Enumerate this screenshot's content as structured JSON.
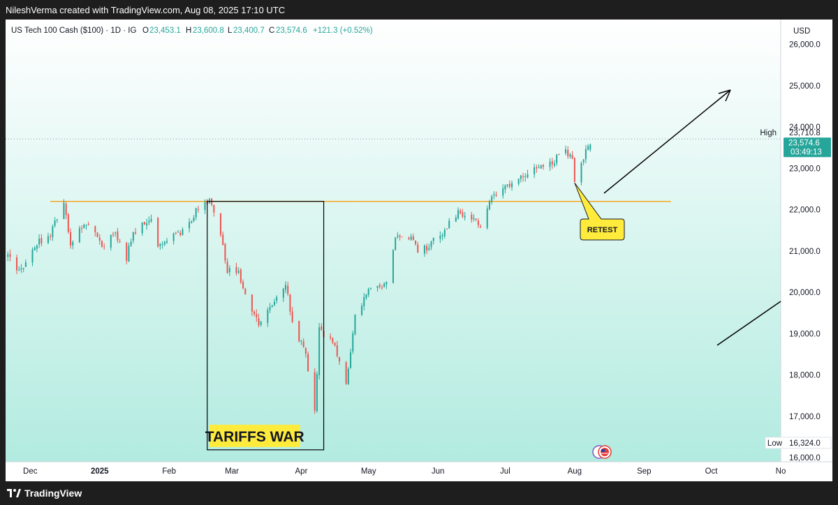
{
  "header": {
    "attribution": "NileshVerma created with TradingView.com, Aug 08, 2025 17:10 UTC"
  },
  "legend": {
    "symbol": "US Tech 100 Cash ($100) · 1D · IG",
    "o_label": "O",
    "o_value": "23,453.1",
    "h_label": "H",
    "h_value": "23,600.8",
    "l_label": "L",
    "l_value": "23,400.7",
    "c_label": "C",
    "c_value": "23,574.6",
    "change": "+121.3 (+0.52%)"
  },
  "price_axis": {
    "currency": "USD",
    "ticks": [
      "26,000.0",
      "25,000.0",
      "24,000.0",
      "23,000.0",
      "22,000.0",
      "21,000.0",
      "20,000.0",
      "19,000.0",
      "18,000.0",
      "17,000.0",
      "16,000.0"
    ],
    "high_label": "High",
    "high_value": "23,710.8",
    "last_price": "23,574.6",
    "countdown": "03:49:13",
    "low_label": "Low",
    "low_value": "16,324.0"
  },
  "time_axis": {
    "labels": [
      "Dec",
      "2025",
      "Feb",
      "Mar",
      "Apr",
      "May",
      "Jun",
      "Jul",
      "Aug",
      "Sep",
      "Oct",
      "No"
    ]
  },
  "annotations": {
    "box_label": "TARIFFS WAR",
    "callout": "RETEST"
  },
  "footer": {
    "brand": "TradingView"
  },
  "colors": {
    "up": "#26a69a",
    "down": "#ef5350",
    "resistance": "#f5a623",
    "label_bg": "#ffeb3b",
    "gradient_top": "#ffffff",
    "gradient_bottom": "#b2ebe0"
  },
  "chart_data": {
    "type": "candlestick",
    "title": "US Tech 100 Cash ($100) · 1D · IG",
    "ylabel": "USD",
    "ylim": [
      15900,
      26600
    ],
    "resistance_level": 22200,
    "high": 23710.8,
    "low": 16324.0,
    "last": 23574.6,
    "x_range": [
      "2024-11-20",
      "2025-11-01"
    ],
    "x_tick_dates": {
      "Dec": "2024-12-01",
      "2025": "2025-01-01",
      "Feb": "2025-02-01",
      "Mar": "2025-03-01",
      "Apr": "2025-04-01",
      "May": "2025-05-01",
      "Jun": "2025-06-01",
      "Jul": "2025-07-01",
      "Aug": "2025-08-01",
      "Sep": "2025-09-01",
      "Oct": "2025-10-01",
      "No": "2025-11-01"
    },
    "closes": [
      {
        "date": "2024-11-21",
        "close": 20850
      },
      {
        "date": "2024-11-27",
        "close": 20500
      },
      {
        "date": "2024-12-04",
        "close": 21200
      },
      {
        "date": "2024-12-10",
        "close": 21400
      },
      {
        "date": "2024-12-16",
        "close": 22150
      },
      {
        "date": "2024-12-19",
        "close": 21200
      },
      {
        "date": "2024-12-26",
        "close": 21700
      },
      {
        "date": "2025-01-02",
        "close": 21150
      },
      {
        "date": "2025-01-08",
        "close": 21400
      },
      {
        "date": "2025-01-13",
        "close": 20850
      },
      {
        "date": "2025-01-16",
        "close": 21450
      },
      {
        "date": "2025-01-24",
        "close": 21800
      },
      {
        "date": "2025-01-27",
        "close": 21100
      },
      {
        "date": "2025-02-03",
        "close": 21350
      },
      {
        "date": "2025-02-07",
        "close": 21500
      },
      {
        "date": "2025-02-13",
        "close": 21950
      },
      {
        "date": "2025-02-19",
        "close": 22200
      },
      {
        "date": "2025-02-24",
        "close": 21400
      },
      {
        "date": "2025-02-27",
        "close": 20550
      },
      {
        "date": "2025-03-04",
        "close": 20500
      },
      {
        "date": "2025-03-10",
        "close": 19450
      },
      {
        "date": "2025-03-13",
        "close": 19250
      },
      {
        "date": "2025-03-19",
        "close": 19700
      },
      {
        "date": "2025-03-25",
        "close": 20250
      },
      {
        "date": "2025-03-28",
        "close": 19300
      },
      {
        "date": "2025-04-03",
        "close": 18500
      },
      {
        "date": "2025-04-07",
        "close": 17100
      },
      {
        "date": "2025-04-09",
        "close": 19100
      },
      {
        "date": "2025-04-15",
        "close": 18800
      },
      {
        "date": "2025-04-21",
        "close": 17800
      },
      {
        "date": "2025-04-25",
        "close": 19450
      },
      {
        "date": "2025-05-02",
        "close": 20100
      },
      {
        "date": "2025-05-09",
        "close": 20200
      },
      {
        "date": "2025-05-13",
        "close": 21300
      },
      {
        "date": "2025-05-21",
        "close": 21300
      },
      {
        "date": "2025-05-23",
        "close": 20900
      },
      {
        "date": "2025-06-02",
        "close": 21400
      },
      {
        "date": "2025-06-10",
        "close": 21900
      },
      {
        "date": "2025-06-16",
        "close": 21750
      },
      {
        "date": "2025-06-20",
        "close": 21650
      },
      {
        "date": "2025-06-25",
        "close": 22250
      },
      {
        "date": "2025-07-01",
        "close": 22500
      },
      {
        "date": "2025-07-09",
        "close": 22800
      },
      {
        "date": "2025-07-16",
        "close": 23000
      },
      {
        "date": "2025-07-23",
        "close": 23200
      },
      {
        "date": "2025-07-28",
        "close": 23450
      },
      {
        "date": "2025-07-31",
        "close": 23200
      },
      {
        "date": "2025-08-01",
        "close": 22750
      },
      {
        "date": "2025-08-04",
        "close": 23050
      },
      {
        "date": "2025-08-06",
        "close": 23450
      },
      {
        "date": "2025-08-08",
        "close": 23574.6
      }
    ]
  }
}
